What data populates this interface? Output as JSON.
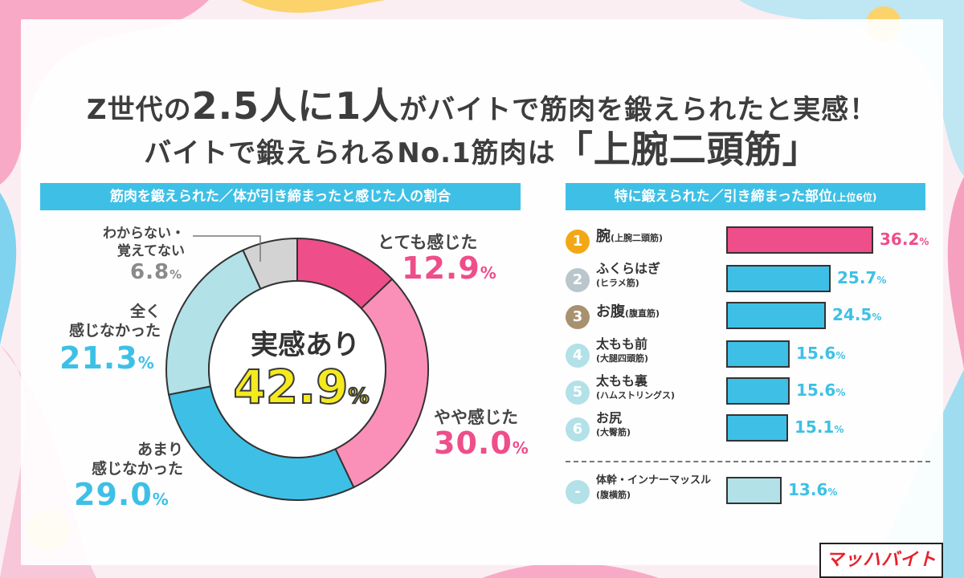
{
  "title": {
    "line1_a": "Z世代の",
    "line1_b": "2.5人に1人",
    "line1_c": "がバイトで筋肉を鍛えられたと実感！",
    "line2_a": "バイトで鍛えられるNo.1筋肉は",
    "line2_b": "「上腕二頭筋」"
  },
  "colors": {
    "pink": "#ee4e8a",
    "light_pink": "#fa90b8",
    "blue": "#3ec0e6",
    "light_blue": "#b2e1e8",
    "grey": "#d3d3d3",
    "gold": "#f2a816"
  },
  "chart_data": [
    {
      "type": "pie",
      "title": "筋肉を鍛えられた／体が引き締まったと感じた人の割合",
      "center_label": "実感あり",
      "center_value": "42.9",
      "unit": "%",
      "slices": [
        {
          "label": "とても感じた",
          "value": 12.9,
          "color": "#ee4e8a"
        },
        {
          "label": "やや感じた",
          "value": 30.0,
          "color": "#fa90b8"
        },
        {
          "label": "あまり 感じなかった",
          "value": 29.0,
          "color": "#3ec0e6"
        },
        {
          "label": "全く 感じなかった",
          "value": 21.3,
          "color": "#b2e1e8"
        },
        {
          "label": "わからない・ 覚えてない",
          "value": 6.8,
          "color": "#d3d3d3"
        }
      ]
    },
    {
      "type": "bar",
      "title": "特に鍛えられた／引き締まった部位",
      "title_small": "(上位6位)",
      "unit": "%",
      "categories": [
        "腕",
        "ふくらはぎ",
        "お腹",
        "太もも前",
        "太もも裏",
        "お尻",
        "体幹・インナーマッスル"
      ],
      "subtitles": [
        "(上腕二頭筋)",
        "(ヒラメ筋)",
        "(腹直筋)",
        "(大腿四頭筋)",
        "(ハムストリングス)",
        "(大臀筋)",
        "(腹横筋)"
      ],
      "ranks": [
        "1",
        "2",
        "3",
        "4",
        "5",
        "6",
        "-"
      ],
      "values": [
        36.2,
        25.7,
        24.5,
        15.6,
        15.6,
        15.1,
        13.6
      ],
      "xlim": [
        0,
        45
      ]
    }
  ],
  "labels": {
    "pct_unit": "%",
    "s0_label": "とても感じた",
    "s0_value": "12.9",
    "s1_label": "やや感じた",
    "s1_value": "30.0",
    "s2_label_a": "あまり",
    "s2_label_b": "感じなかった",
    "s2_value": "29.0",
    "s3_label_a": "全く",
    "s3_label_b": "感じなかった",
    "s3_value": "21.3",
    "s4_label_a": "わからない・",
    "s4_label_b": "覚えてない",
    "s4_value": "6.8"
  },
  "bars": [
    {
      "rank": "1",
      "name": "腕",
      "sub": "(上腕二頭筋)",
      "value": "36.2"
    },
    {
      "rank": "2",
      "name": "ふくらはぎ",
      "sub": "(ヒラメ筋)",
      "value": "25.7"
    },
    {
      "rank": "3",
      "name": "お腹",
      "sub": "(腹直筋)",
      "value": "24.5"
    },
    {
      "rank": "4",
      "name": "太もも前",
      "sub": "(大腿四頭筋)",
      "value": "15.6"
    },
    {
      "rank": "5",
      "name": "太もも裏",
      "sub": "(ハムストリングス)",
      "value": "15.6"
    },
    {
      "rank": "6",
      "name": "お尻",
      "sub": "(大臀筋)",
      "value": "15.1"
    },
    {
      "rank": "-",
      "name": "体幹・インナーマッスル",
      "sub": "(腹横筋)",
      "value": "13.6"
    }
  ],
  "logo": "マッハバイト"
}
